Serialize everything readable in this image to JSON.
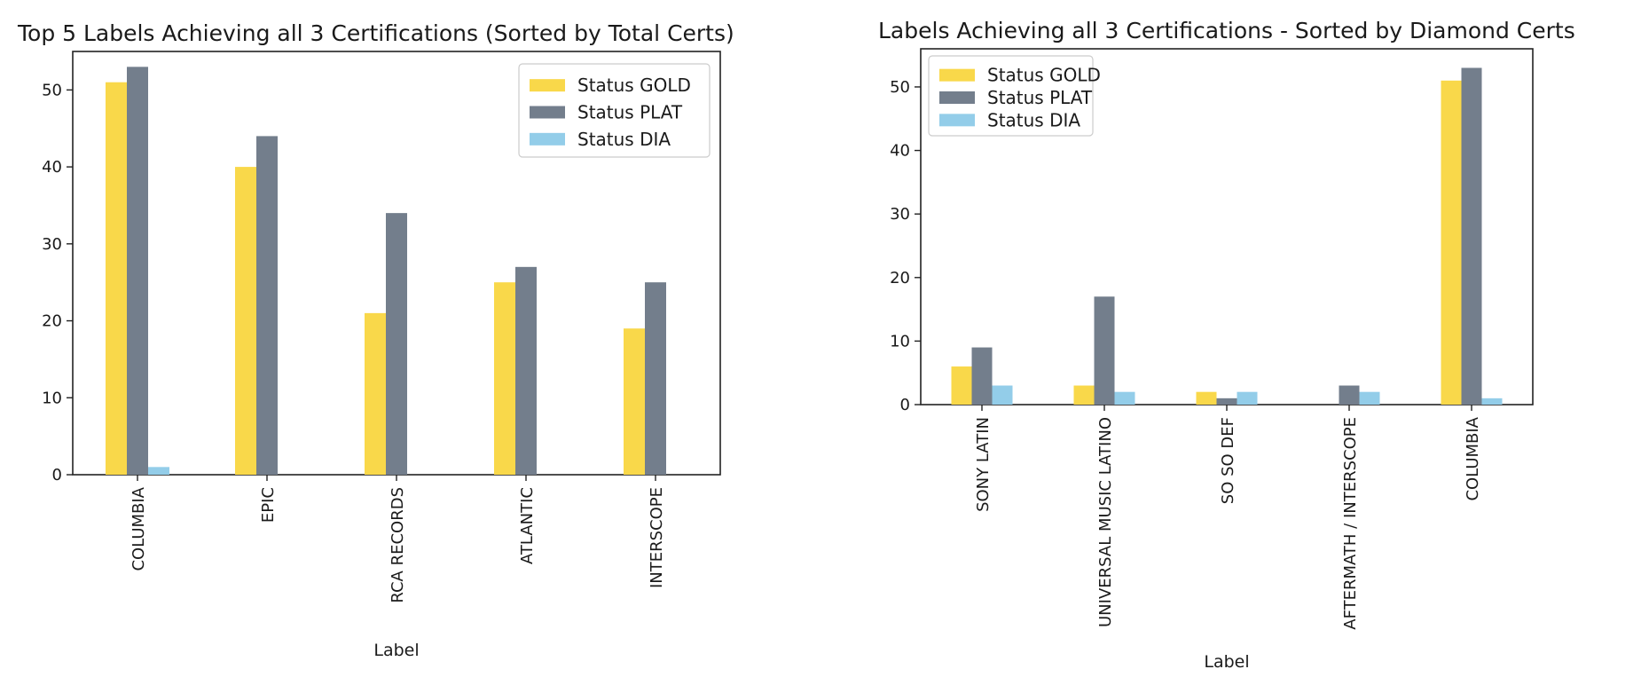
{
  "chart_data": [
    {
      "type": "bar",
      "title": "Top 5 Labels Achieving all 3 Certifications (Sorted by Total Certs)",
      "xlabel": "Label",
      "ylabel": "",
      "ylim": [
        0,
        55
      ],
      "yticks": [
        "0",
        "10",
        "20",
        "30",
        "40",
        "50"
      ],
      "categories": [
        "COLUMBIA",
        "EPIC",
        "RCA RECORDS",
        "ATLANTIC",
        "INTERSCOPE"
      ],
      "series": [
        {
          "name": "Status GOLD",
          "color": "#f9d84a",
          "values": [
            51,
            40,
            21,
            25,
            19
          ]
        },
        {
          "name": "Status PLAT",
          "color": "#737e8c",
          "values": [
            53,
            44,
            34,
            27,
            25
          ]
        },
        {
          "name": "Status DIA",
          "color": "#93cde9",
          "values": [
            1,
            0,
            0,
            0,
            0
          ]
        }
      ],
      "legend_position": "top-right",
      "grid": false
    },
    {
      "type": "bar",
      "title": "Labels Achieving all 3 Certifications - Sorted by Diamond Certs",
      "xlabel": "Label",
      "ylabel": "",
      "ylim": [
        0,
        56
      ],
      "yticks": [
        "0",
        "10",
        "20",
        "30",
        "40",
        "50"
      ],
      "categories": [
        "SONY LATIN",
        "UNIVERSAL MUSIC LATINO",
        "SO SO DEF",
        "AFTERMATH  /  INTERSCOPE",
        "COLUMBIA"
      ],
      "series": [
        {
          "name": "Status GOLD",
          "color": "#f9d84a",
          "values": [
            6,
            3,
            2,
            0,
            51
          ]
        },
        {
          "name": "Status PLAT",
          "color": "#737e8c",
          "values": [
            9,
            17,
            1,
            3,
            53
          ]
        },
        {
          "name": "Status DIA",
          "color": "#93cde9",
          "values": [
            3,
            2,
            2,
            2,
            1
          ]
        }
      ],
      "legend_position": "top-left",
      "grid": false
    }
  ]
}
